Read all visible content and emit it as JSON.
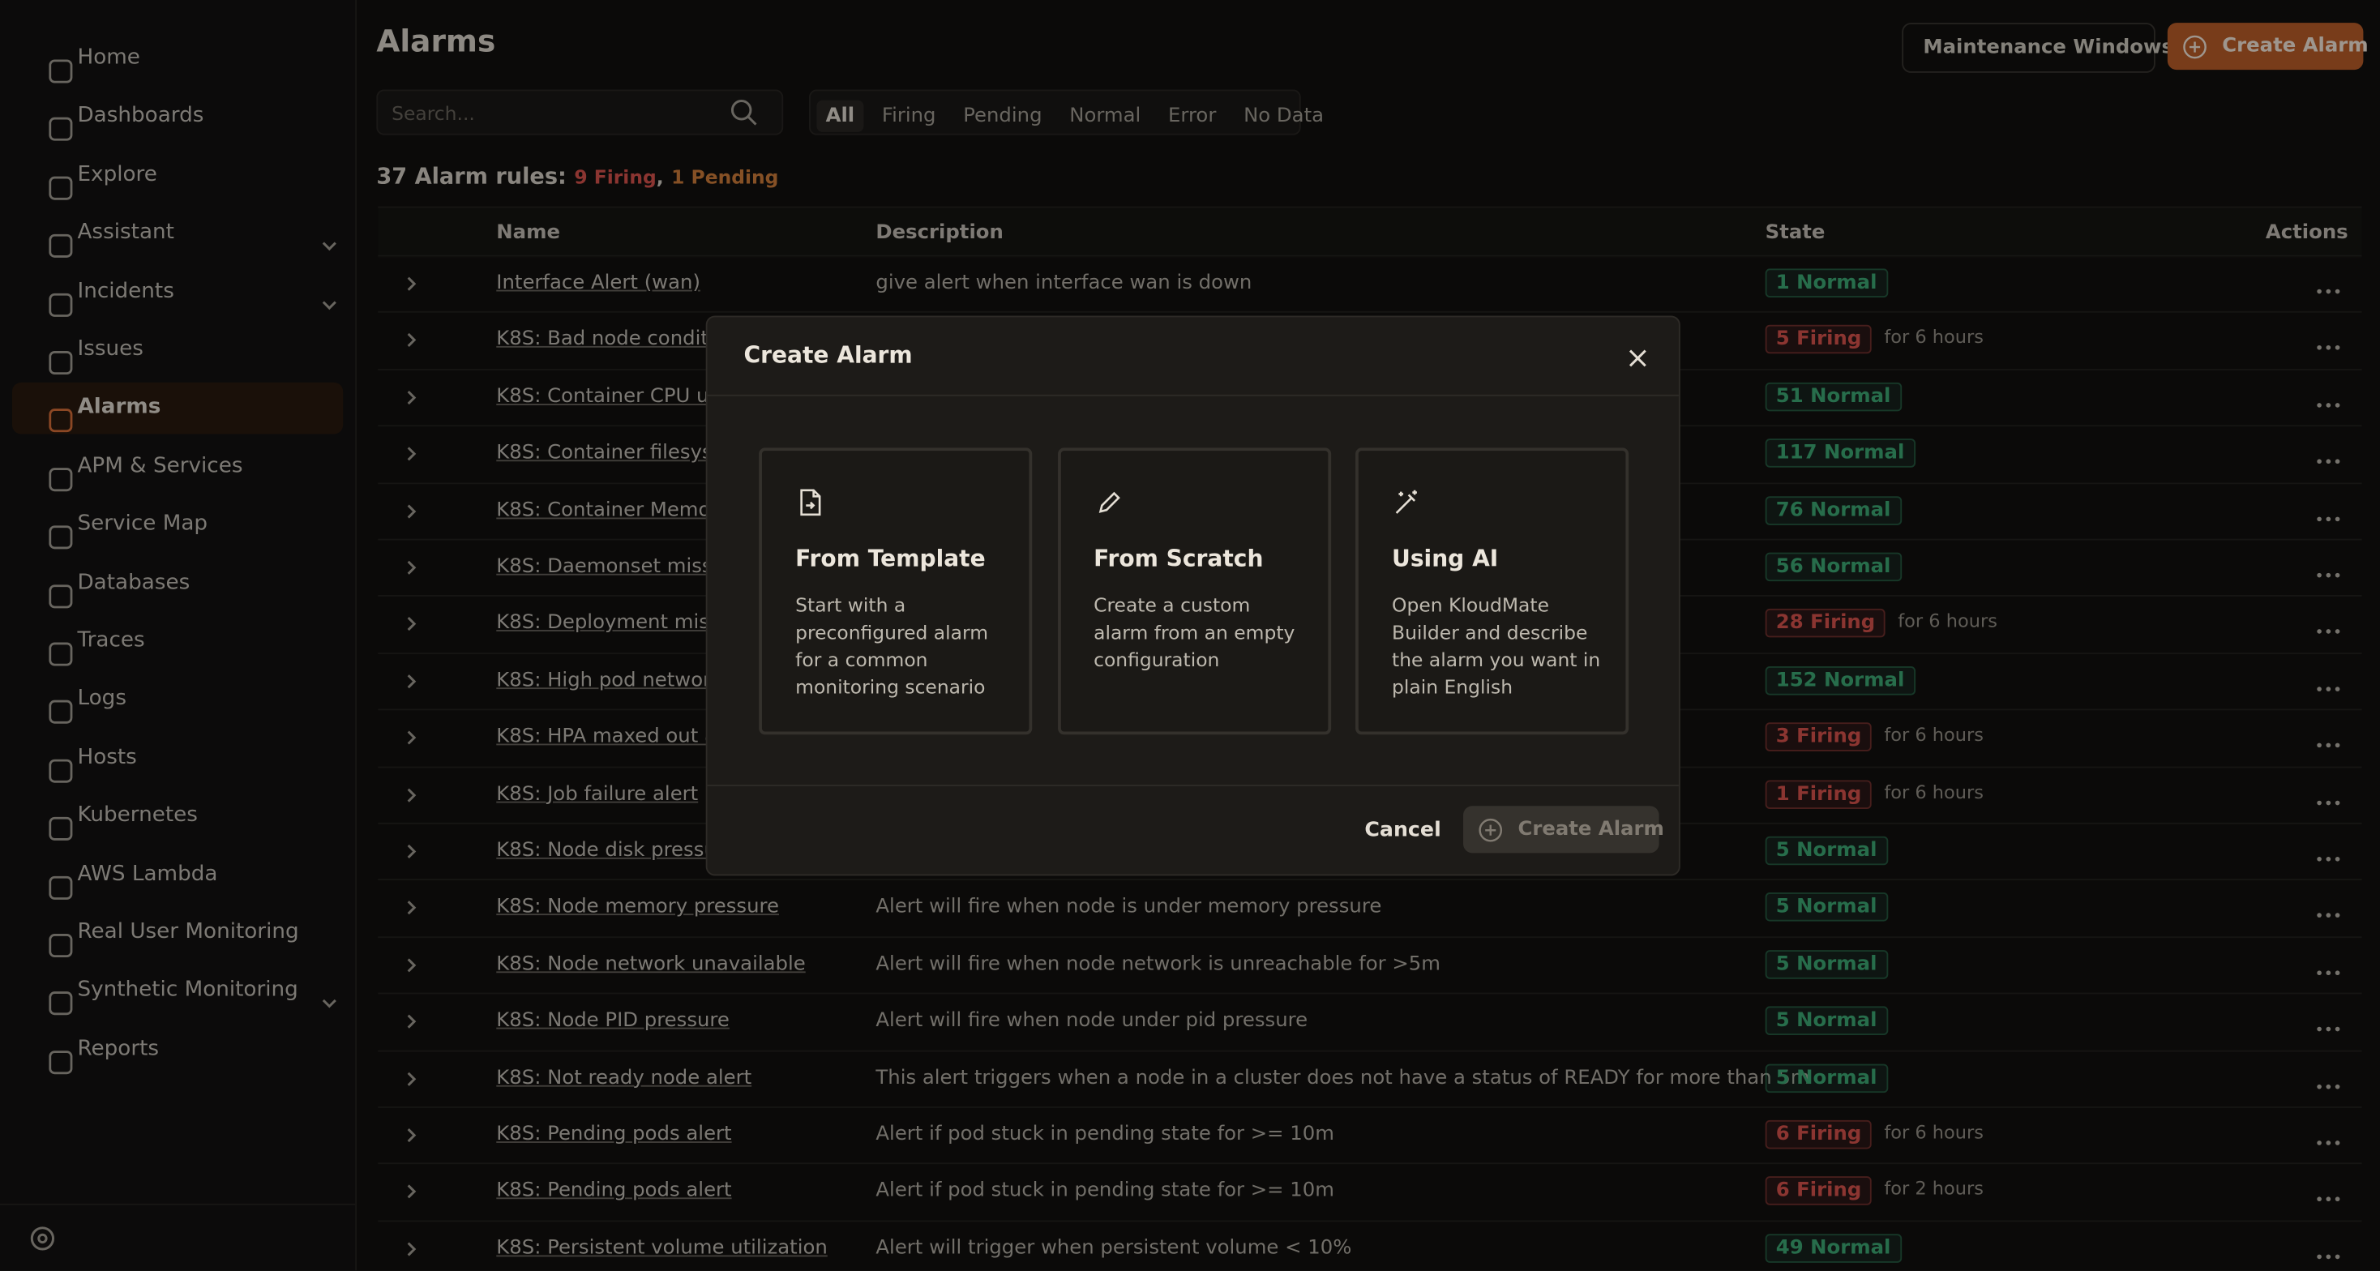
{
  "sidebar": {
    "items": [
      {
        "label": "Home"
      },
      {
        "label": "Dashboards"
      },
      {
        "label": "Explore"
      },
      {
        "label": "Assistant",
        "expandable": true
      },
      {
        "label": "Incidents",
        "expandable": true
      },
      {
        "label": "Issues"
      },
      {
        "label": "Alarms",
        "active": true
      },
      {
        "label": "APM & Services"
      },
      {
        "label": "Service Map"
      },
      {
        "label": "Databases"
      },
      {
        "label": "Traces"
      },
      {
        "label": "Logs"
      },
      {
        "label": "Hosts"
      },
      {
        "label": "Kubernetes"
      },
      {
        "label": "AWS Lambda"
      },
      {
        "label": "Real User Monitoring"
      },
      {
        "label": "Synthetic Monitoring",
        "expandable": true
      },
      {
        "label": "Reports"
      }
    ],
    "settings": "Settings"
  },
  "header": {
    "title": "Alarms",
    "maintenance": "Maintenance Windows",
    "create": "Create Alarm"
  },
  "search": {
    "placeholder": "Search..."
  },
  "filters": {
    "tabs": [
      "All",
      "Firing",
      "Pending",
      "Normal",
      "Error",
      "No Data"
    ],
    "active": 0
  },
  "summary": {
    "label": "37 Alarm rules:",
    "firing": "9 Firing",
    "separator": ",",
    "pending": "1 Pending"
  },
  "table": {
    "columns": [
      "Name",
      "Description",
      "State",
      "Actions"
    ],
    "rows": [
      {
        "name": "Interface Alert (wan)",
        "description": "give alert when interface wan is down",
        "state": "1 Normal",
        "color": "#3fb07a"
      },
      {
        "name": "K8S: Bad node conditic",
        "state": "5 Firing",
        "since": "for 6 hours",
        "color": "#e0564f"
      },
      {
        "name": "K8S: Container CPU uti",
        "state": "51 Normal",
        "color": "#3fb07a"
      },
      {
        "name": "K8S: Container filesyst",
        "state": "117 Normal",
        "color": "#3fb07a"
      },
      {
        "name": "K8S: Container Memory",
        "state": "76 Normal",
        "color": "#3fb07a"
      },
      {
        "name": "K8S: Daemonset missc",
        "state": "56 Normal",
        "color": "#3fb07a"
      },
      {
        "name": "K8S: Deployment mism",
        "state": "28 Firing",
        "since": "for 6 hours",
        "color": "#e0564f"
      },
      {
        "name": "K8S: High pod network",
        "state": "152 Normal",
        "color": "#3fb07a"
      },
      {
        "name": "K8S: HPA maxed out al",
        "state": "3 Firing",
        "since": "for 6 hours",
        "color": "#e0564f"
      },
      {
        "name": "K8S: Job failure alert",
        "state": "1 Firing",
        "since": "for 6 hours",
        "color": "#e0564f"
      },
      {
        "name": "K8S: Node disk pressur",
        "state": "5 Normal",
        "color": "#3fb07a"
      },
      {
        "name": "K8S: Node memory pressure",
        "description": "Alert will fire when node is under memory pressure",
        "state": "5 Normal",
        "color": "#3fb07a"
      },
      {
        "name": "K8S: Node network unavailable",
        "description": "Alert will fire when node network is unreachable for >5m",
        "state": "5 Normal",
        "color": "#3fb07a"
      },
      {
        "name": "K8S: Node PID pressure",
        "description": "Alert will fire when node under pid pressure",
        "state": "5 Normal",
        "color": "#3fb07a"
      },
      {
        "name": "K8S: Not ready node alert",
        "description": "This alert triggers when a node in a cluster does not have a status of READY for more than 5m",
        "state": "5 Normal",
        "color": "#3fb07a"
      },
      {
        "name": "K8S: Pending pods alert",
        "description": "Alert if pod stuck in pending state for >= 10m",
        "state": "6 Firing",
        "since": "for 6 hours",
        "color": "#e0564f"
      },
      {
        "name": "K8S: Pending pods alert",
        "description": "Alert if pod stuck in pending state for >= 10m",
        "state": "6 Firing",
        "since": "for 2 hours",
        "color": "#e0564f"
      },
      {
        "name": "K8S: Persistent volume utilization",
        "description": "Alert will trigger when persistent volume < 10%",
        "state": "49 Normal",
        "color": "#3fb07a"
      }
    ]
  },
  "modal": {
    "title": "Create Alarm",
    "options": [
      {
        "title": "From Template",
        "text": "Start with a preconfigured alarm for a common monitoring scenario"
      },
      {
        "title": "From Scratch",
        "text": "Create a custom alarm from an empty configuration"
      },
      {
        "title": "Using AI",
        "text": "Open KloudMate Builder and describe the alarm you want in plain English"
      }
    ],
    "cancel": "Cancel",
    "submit": "Create Alarm"
  }
}
